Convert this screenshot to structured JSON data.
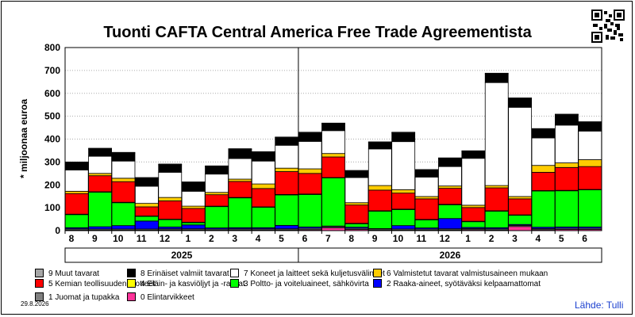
{
  "qr_icon": "qr-code-icon",
  "date_stamp": "29.8.2026",
  "source": "Lähde: Tulli",
  "chart_data": {
    "type": "bar",
    "stacked": true,
    "title": "Tuonti CAFTA Central America Free Trade Agreementista",
    "ylabel": "* miljoonaa euroa",
    "xlabel": "",
    "ylim": [
      0,
      800
    ],
    "yticks": [
      0,
      100,
      200,
      300,
      400,
      500,
      600,
      700,
      800
    ],
    "grid": true,
    "legend_position": "bottom",
    "categories": [
      "8",
      "9",
      "10",
      "11",
      "12",
      "1",
      "2",
      "3",
      "4",
      "5",
      "6",
      "7",
      "8",
      "9",
      "10",
      "11",
      "12",
      "1",
      "2",
      "3",
      "4",
      "5",
      "6"
    ],
    "year_groups": [
      {
        "label": "2025",
        "start": 0,
        "end": 10
      },
      {
        "label": "2026",
        "start": 10,
        "end": 23
      }
    ],
    "series": [
      {
        "name": "0 Elintarvikkeet",
        "color": "#ff3399",
        "values": [
          3,
          2,
          2,
          2,
          3,
          3,
          2,
          3,
          3,
          3,
          4,
          12,
          5,
          2,
          2,
          2,
          3,
          4,
          3,
          18,
          4,
          5,
          5
        ]
      },
      {
        "name": "1 Juomat ja tupakka",
        "color": "#808080",
        "values": [
          5,
          5,
          5,
          5,
          5,
          5,
          5,
          5,
          5,
          5,
          6,
          5,
          5,
          5,
          5,
          5,
          5,
          5,
          5,
          5,
          5,
          5,
          5
        ]
      },
      {
        "name": "2 Raaka-aineet, syötäväksi kelpaamattomat",
        "color": "#0000ff",
        "values": [
          5,
          10,
          15,
          35,
          8,
          17,
          5,
          5,
          5,
          15,
          6,
          3,
          5,
          2,
          15,
          5,
          45,
          5,
          5,
          4,
          6,
          6,
          6
        ]
      },
      {
        "name": "3 Poltto- ja voiteluaineet, sähkövirta",
        "color": "#00ff00",
        "values": [
          57,
          151,
          100,
          20,
          32,
          10,
          93,
          130,
          89,
          133,
          142,
          210,
          15,
          76,
          70,
          35,
          60,
          25,
          72,
          40,
          158,
          158,
          162
        ]
      },
      {
        "name": "4 Eläin- ja kasviöljyt ja -rasvat",
        "color": "#ffff00",
        "values": [
          2,
          2,
          2,
          2,
          2,
          2,
          2,
          2,
          2,
          2,
          2,
          2,
          2,
          2,
          2,
          2,
          2,
          2,
          2,
          2,
          2,
          2,
          2
        ]
      },
      {
        "name": "5 Kemian teollisuuden tuotteet",
        "color": "#ff0000",
        "values": [
          90,
          70,
          90,
          40,
          80,
          60,
          50,
          70,
          80,
          100,
          90,
          90,
          80,
          90,
          70,
          90,
          70,
          60,
          100,
          70,
          80,
          100,
          100
        ]
      },
      {
        "name": "6 Valmistetut tavarat valmistusaineen mukaan",
        "color": "#ffcc00",
        "values": [
          10,
          10,
          15,
          15,
          15,
          10,
          10,
          10,
          20,
          15,
          20,
          15,
          10,
          20,
          15,
          10,
          10,
          10,
          10,
          10,
          30,
          20,
          30
        ]
      },
      {
        "name": "7 Koneet ja laitteet sekä kuljetusvälineet",
        "color": "#ffffff",
        "values": [
          93,
          75,
          75,
          75,
          110,
          65,
          80,
          90,
          100,
          100,
          120,
          100,
          110,
          160,
          210,
          85,
          85,
          205,
          450,
          390,
          120,
          165,
          125
        ]
      },
      {
        "name": "8 Erinäiset valmiit tavarat",
        "color": "#000000",
        "values": [
          32,
          32,
          35,
          35,
          33,
          38,
          33,
          40,
          38,
          33,
          37,
          30,
          28,
          28,
          38,
          30,
          35,
          30,
          38,
          38,
          38,
          45,
          38
        ]
      },
      {
        "name": "9 Muut tavarat",
        "color": "#a6a6a6",
        "values": [
          3,
          3,
          3,
          3,
          3,
          3,
          3,
          3,
          3,
          3,
          3,
          3,
          3,
          3,
          3,
          3,
          3,
          3,
          3,
          3,
          3,
          3,
          3
        ]
      }
    ]
  }
}
